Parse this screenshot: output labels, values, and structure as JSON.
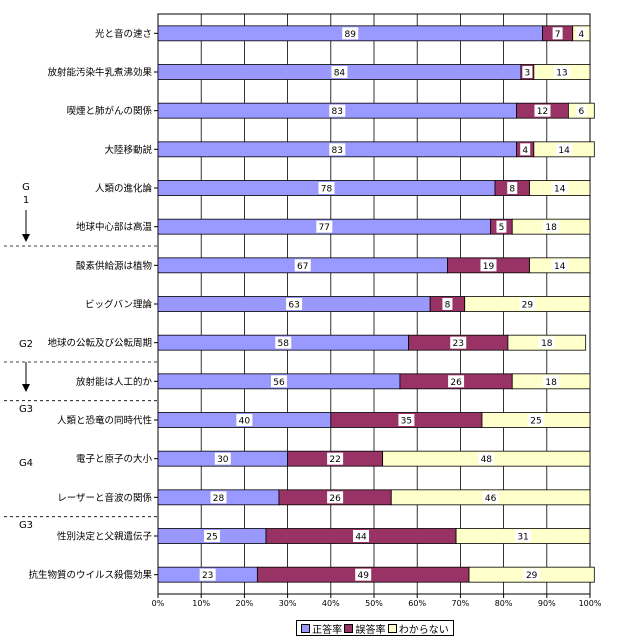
{
  "colors": {
    "correct": "#9999ff",
    "wrong": "#993366",
    "unknown": "#ffffcc",
    "grid": "#000000"
  },
  "chart_data": {
    "type": "bar",
    "orientation": "horizontal",
    "stacked": true,
    "title": "",
    "xlabel": "",
    "ylabel": "",
    "xlim": [
      0,
      100
    ],
    "x_ticks": [
      "0%",
      "10%",
      "20%",
      "30%",
      "40%",
      "50%",
      "60%",
      "70%",
      "80%",
      "90%",
      "100%"
    ],
    "grid": true,
    "legend_position": "bottom",
    "categories": [
      "光と音の速さ",
      "放射能汚染牛乳煮沸効果",
      "喫煙と肺がんの関係",
      "大陸移動説",
      "人類の進化論",
      "地球中心部は高温",
      "酸素供給源は植物",
      "ビッグバン理論",
      "地球の公転及び公転周期",
      "放射能は人工的か",
      "人類と恐竜の同時代性",
      "電子と原子の大小",
      "レーザーと音波の関係",
      "性別決定と父親遺伝子",
      "抗生物質のウイルス殺傷効果"
    ],
    "series": [
      {
        "name": "正答率",
        "values": [
          89,
          84,
          83,
          83,
          78,
          77,
          67,
          63,
          58,
          56,
          40,
          30,
          28,
          25,
          23
        ]
      },
      {
        "name": "誤答率",
        "values": [
          7,
          3,
          12,
          4,
          8,
          5,
          19,
          8,
          23,
          26,
          35,
          22,
          26,
          44,
          49
        ]
      },
      {
        "name": "わからない",
        "values": [
          4,
          13,
          6,
          14,
          14,
          18,
          14,
          29,
          18,
          18,
          25,
          48,
          46,
          31,
          29
        ]
      }
    ],
    "group_labels": [
      {
        "label": "G\n1",
        "after_index": 5
      },
      {
        "label": "G2",
        "after_index": 8
      },
      {
        "label": "G3",
        "after_index": 9
      },
      {
        "label": "G4",
        "after_index": 12
      },
      {
        "label": "G3",
        "after_index": 14
      }
    ]
  }
}
